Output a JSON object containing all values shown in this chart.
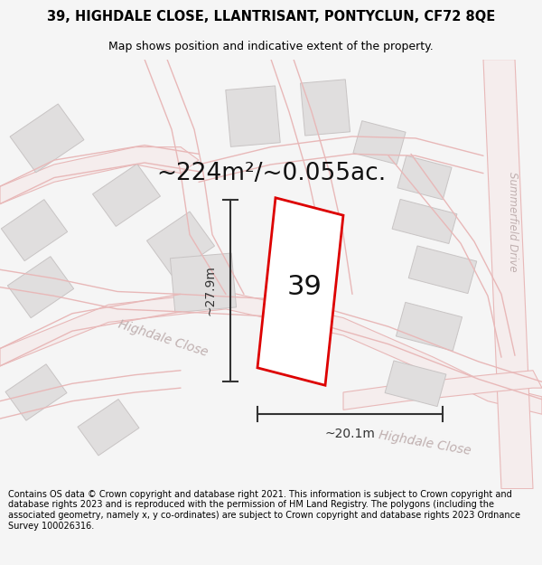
{
  "title_line1": "39, HIGHDALE CLOSE, LLANTRISANT, PONTYCLUN, CF72 8QE",
  "title_line2": "Map shows position and indicative extent of the property.",
  "area_text": "~224m²/~0.055ac.",
  "label_number": "39",
  "dim_width": "~20.1m",
  "dim_height": "~27.9m",
  "street_label1": "Highdale Close",
  "street_label2": "Highdale Close",
  "side_label": "Summerfield Drive",
  "footer": "Contains OS data © Crown copyright and database right 2021. This information is subject to Crown copyright and database rights 2023 and is reproduced with the permission of HM Land Registry. The polygons (including the associated geometry, namely x, y co-ordinates) are subject to Crown copyright and database rights 2023 Ordnance Survey 100026316.",
  "bg_color": "#f5f5f5",
  "map_bg": "#ffffff",
  "road_color": "#e8b8b8",
  "building_color": "#e0dede",
  "building_edge": "#c8c4c4",
  "plot_color": "#dd0000",
  "plot_fill": "white",
  "dim_color": "#333333",
  "title_fontsize": 10.5,
  "subtitle_fontsize": 9.0,
  "area_fontsize": 19,
  "label_fontsize": 22,
  "footer_fontsize": 7.0,
  "street_fontsize": 10,
  "side_fontsize": 8.5
}
